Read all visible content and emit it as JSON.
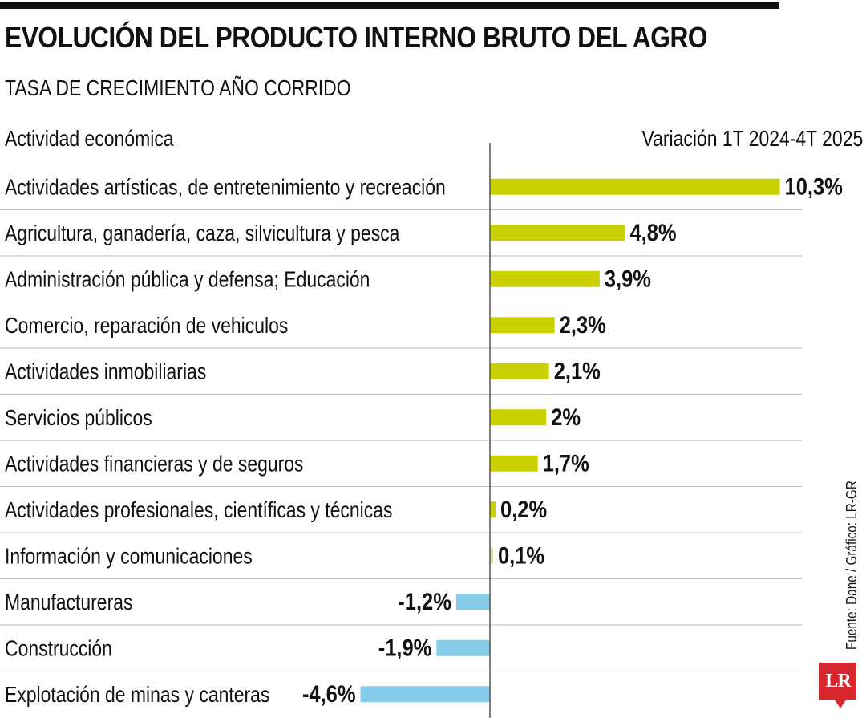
{
  "header": {
    "title": "EVOLUCIÓN DEL PRODUCTO INTERNO BRUTO DEL AGRO",
    "subtitle": "TASA DE CRECIMIENTO AÑO CORRIDO",
    "col_left": "Actividad económica",
    "col_right": "Variación 1T 2024-4T 2025"
  },
  "credit": "Fuente: Dane / Gráfico: LR-GR",
  "logo": {
    "text": "LR",
    "color": "#d7282f"
  },
  "colors": {
    "positive": "#c9d100",
    "negative": "#87cce8",
    "positive_small": "#d9dcae"
  },
  "chart_data": {
    "type": "bar",
    "orientation": "horizontal",
    "categories": [
      "Actividades artísticas, de entretenimiento y recreación",
      "Agricultura, ganadería, caza, silvicultura y pesca",
      "Administración pública y defensa; Educación",
      "Comercio, reparación de vehiculos",
      "Actividades inmobiliarias",
      "Servicios públicos",
      "Actividades financieras y de seguros",
      "Actividades profesionales, científicas y técnicas",
      "Información y comunicaciones",
      "Manufactureras",
      "Construcción",
      "Explotación de minas y canteras"
    ],
    "values": [
      10.3,
      4.8,
      3.9,
      2.3,
      2.1,
      2.0,
      1.7,
      0.2,
      0.1,
      -1.2,
      -1.9,
      -4.6
    ],
    "labels": [
      "10,3%",
      "4,8%",
      "3,9%",
      "2,3%",
      "2,1%",
      "2%",
      "1,7%",
      "0,2%",
      "0,1%",
      "-1,2%",
      "-1,9%",
      "-4,6%"
    ],
    "unit": "%",
    "grid": false,
    "legend": "none"
  }
}
